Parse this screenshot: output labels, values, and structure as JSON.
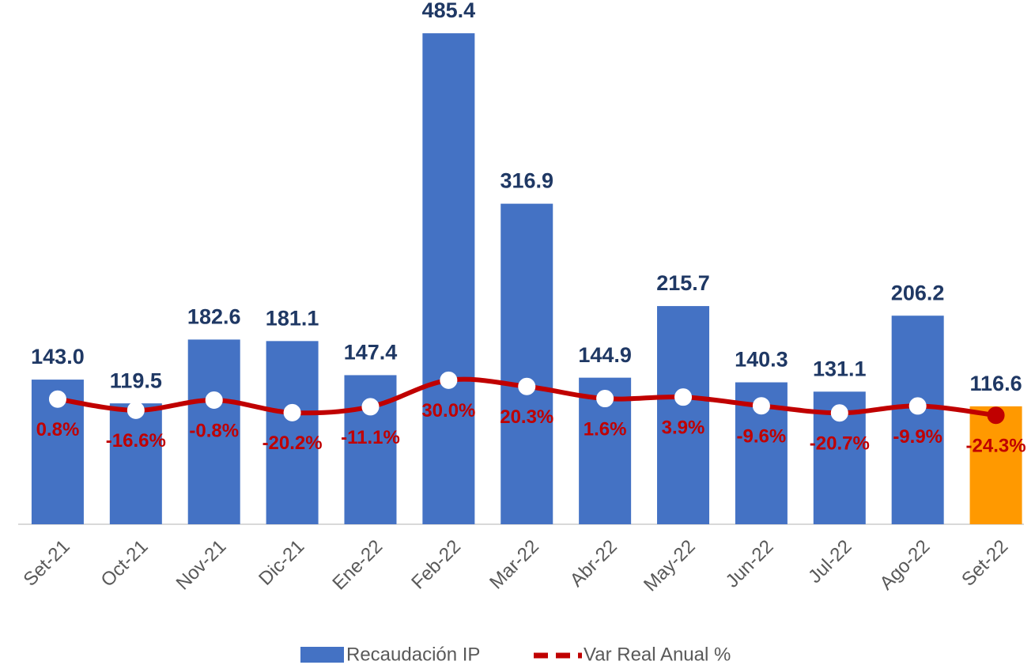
{
  "chart_data": {
    "type": "bar_line",
    "categories": [
      "Set-21",
      "Oct-21",
      "Nov-21",
      "Dic-21",
      "Ene-22",
      "Feb-22",
      "Mar-22",
      "Abr-22",
      "May-22",
      "Jun-22",
      "Jul-22",
      "Ago-22",
      "Set-22"
    ],
    "ylim": [
      0,
      500
    ],
    "y2lim": [
      -193,
      590
    ],
    "legend": "bottom",
    "series": [
      {
        "name": "Recaudación IP",
        "type": "bar",
        "color": "#4472c4",
        "colors": [
          "#4472c4",
          "#4472c4",
          "#4472c4",
          "#4472c4",
          "#4472c4",
          "#4472c4",
          "#4472c4",
          "#4472c4",
          "#4472c4",
          "#4472c4",
          "#4472c4",
          "#4472c4",
          "#ff9900"
        ],
        "values": [
          143.0,
          119.5,
          182.6,
          181.1,
          147.4,
          485.4,
          316.9,
          144.9,
          215.7,
          140.3,
          131.1,
          206.2,
          116.6
        ],
        "value_labels": [
          "143.0",
          "119.5",
          "182.6",
          "181.1",
          "147.4",
          "485.4",
          "316.9",
          "144.9",
          "215.7",
          "140.3",
          "131.1",
          "206.2",
          "116.6"
        ]
      },
      {
        "name": "Var Real Anual %",
        "type": "line",
        "axis": "y2",
        "color": "#c00000",
        "marker_colors": [
          "#ffffff",
          "#ffffff",
          "#ffffff",
          "#ffffff",
          "#ffffff",
          "#ffffff",
          "#ffffff",
          "#ffffff",
          "#ffffff",
          "#ffffff",
          "#ffffff",
          "#ffffff",
          "#c00000"
        ],
        "values": [
          0.8,
          -16.6,
          -0.8,
          -20.2,
          -11.1,
          30.0,
          20.3,
          1.6,
          3.9,
          -9.6,
          -20.7,
          -9.9,
          -24.3
        ],
        "value_labels": [
          "0.8%",
          "-16.6%",
          "-0.8%",
          "-20.2%",
          "-11.1%",
          "30.0%",
          "20.3%",
          "1.6%",
          "3.9%",
          "-9.6%",
          "-20.7%",
          "-9.9%",
          "-24.3%"
        ]
      }
    ]
  }
}
